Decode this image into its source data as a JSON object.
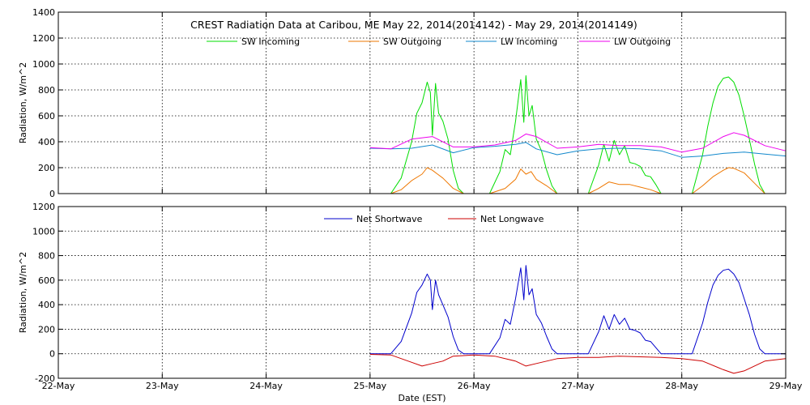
{
  "chart_data": [
    {
      "type": "line",
      "title": "CREST Radiation Data at Caribou, ME    May 22, 2014(2014142) - May 29, 2014(2014149)",
      "xlabel": "",
      "ylabel": "Radiation, W/m^2",
      "xlim": [
        0,
        7
      ],
      "ylim": [
        0,
        1400
      ],
      "yticks": [
        "0",
        "200",
        "400",
        "600",
        "800",
        "1000",
        "1200",
        "1400"
      ],
      "grid": true,
      "legend_position": "top",
      "x_tick_labels": [
        "22-May",
        "23-May",
        "24-May",
        "25-May",
        "26-May",
        "27-May",
        "28-May",
        "29-May"
      ],
      "series": [
        {
          "name": "SW Incoming",
          "color": "#00dd00",
          "x": [
            3.2,
            3.3,
            3.4,
            3.45,
            3.5,
            3.55,
            3.58,
            3.6,
            3.63,
            3.66,
            3.7,
            3.75,
            3.8,
            3.85,
            3.9,
            4.15,
            4.25,
            4.3,
            4.35,
            4.4,
            4.45,
            4.48,
            4.5,
            4.53,
            4.56,
            4.6,
            4.65,
            4.7,
            4.75,
            4.8,
            5.1,
            5.2,
            5.25,
            5.3,
            5.35,
            5.4,
            5.45,
            5.5,
            5.55,
            5.6,
            5.65,
            5.7,
            5.75,
            5.8,
            6.1,
            6.2,
            6.25,
            6.3,
            6.35,
            6.4,
            6.45,
            6.5,
            6.55,
            6.6,
            6.65,
            6.7,
            6.75,
            6.8
          ],
          "y": [
            0,
            120,
            400,
            620,
            700,
            860,
            780,
            450,
            850,
            620,
            560,
            420,
            180,
            40,
            0,
            0,
            170,
            340,
            300,
            560,
            880,
            550,
            910,
            600,
            680,
            420,
            330,
            180,
            60,
            0,
            0,
            220,
            380,
            250,
            410,
            300,
            370,
            240,
            230,
            210,
            140,
            130,
            70,
            0,
            0,
            300,
            520,
            700,
            830,
            890,
            900,
            860,
            760,
            600,
            420,
            230,
            70,
            0
          ]
        },
        {
          "name": "SW Outgoing",
          "color": "#ee7700",
          "x": [
            3.2,
            3.3,
            3.4,
            3.5,
            3.55,
            3.6,
            3.65,
            3.7,
            3.8,
            3.9,
            4.15,
            4.3,
            4.4,
            4.45,
            4.5,
            4.55,
            4.6,
            4.7,
            4.8,
            5.1,
            5.2,
            5.3,
            5.4,
            5.5,
            5.6,
            5.7,
            5.8,
            6.1,
            6.2,
            6.3,
            6.4,
            6.45,
            6.5,
            6.6,
            6.7,
            6.8
          ],
          "y": [
            0,
            30,
            100,
            150,
            200,
            180,
            150,
            120,
            40,
            0,
            0,
            40,
            110,
            190,
            150,
            170,
            110,
            60,
            0,
            0,
            40,
            90,
            70,
            70,
            50,
            30,
            0,
            0,
            60,
            130,
            180,
            200,
            195,
            160,
            80,
            0
          ]
        },
        {
          "name": "LW Incoming",
          "color": "#1188cc",
          "x": [
            3.0,
            3.2,
            3.4,
            3.6,
            3.8,
            4.0,
            4.2,
            4.4,
            4.5,
            4.6,
            4.8,
            5.0,
            5.2,
            5.4,
            5.6,
            5.8,
            6.0,
            6.2,
            6.4,
            6.6,
            6.8,
            7.0
          ],
          "y": [
            350,
            345,
            350,
            375,
            315,
            355,
            365,
            380,
            395,
            345,
            300,
            330,
            345,
            350,
            345,
            330,
            280,
            290,
            310,
            320,
            305,
            290
          ]
        },
        {
          "name": "LW Outgoing",
          "color": "#ee00ee",
          "x": [
            3.0,
            3.2,
            3.4,
            3.6,
            3.8,
            4.0,
            4.2,
            4.4,
            4.5,
            4.6,
            4.8,
            5.0,
            5.2,
            5.4,
            5.6,
            5.8,
            6.0,
            6.2,
            6.4,
            6.5,
            6.6,
            6.8,
            7.0
          ],
          "y": [
            355,
            345,
            420,
            440,
            360,
            360,
            375,
            410,
            460,
            440,
            350,
            360,
            380,
            370,
            370,
            360,
            320,
            350,
            440,
            470,
            450,
            370,
            330
          ]
        }
      ]
    },
    {
      "type": "line",
      "title": "",
      "xlabel": "Date (EST)",
      "ylabel": "Radiation, W/m^2",
      "xlim": [
        0,
        7
      ],
      "ylim": [
        -200,
        1200
      ],
      "yticks": [
        "-200",
        "0",
        "200",
        "400",
        "600",
        "800",
        "1000",
        "1200"
      ],
      "grid": true,
      "legend_position": "top",
      "x_tick_labels": [
        "22-May",
        "23-May",
        "24-May",
        "25-May",
        "26-May",
        "27-May",
        "28-May",
        "29-May"
      ],
      "series": [
        {
          "name": "Net Shortwave",
          "color": "#0000cc",
          "x": [
            3.0,
            3.2,
            3.3,
            3.4,
            3.45,
            3.5,
            3.55,
            3.58,
            3.6,
            3.63,
            3.66,
            3.7,
            3.75,
            3.8,
            3.85,
            3.9,
            4.15,
            4.25,
            4.3,
            4.35,
            4.4,
            4.45,
            4.48,
            4.5,
            4.53,
            4.56,
            4.6,
            4.65,
            4.7,
            4.75,
            4.8,
            5.1,
            5.2,
            5.25,
            5.3,
            5.35,
            5.4,
            5.45,
            5.5,
            5.55,
            5.6,
            5.65,
            5.7,
            5.75,
            5.8,
            6.1,
            6.2,
            6.25,
            6.3,
            6.35,
            6.4,
            6.45,
            6.5,
            6.55,
            6.6,
            6.65,
            6.7,
            6.75,
            6.8,
            7.0
          ],
          "y": [
            0,
            0,
            100,
            330,
            500,
            560,
            650,
            600,
            360,
            600,
            480,
            400,
            300,
            140,
            30,
            0,
            0,
            130,
            280,
            240,
            450,
            700,
            440,
            720,
            480,
            530,
            320,
            250,
            140,
            40,
            0,
            0,
            180,
            310,
            200,
            320,
            240,
            290,
            200,
            190,
            170,
            110,
            100,
            50,
            0,
            0,
            250,
            420,
            560,
            640,
            680,
            690,
            650,
            580,
            450,
            320,
            160,
            40,
            0,
            0
          ]
        },
        {
          "name": "Net Longwave",
          "color": "#cc0000",
          "x": [
            3.0,
            3.2,
            3.4,
            3.5,
            3.6,
            3.7,
            3.8,
            4.0,
            4.2,
            4.4,
            4.5,
            4.6,
            4.8,
            5.0,
            5.2,
            5.4,
            5.6,
            5.8,
            6.0,
            6.2,
            6.4,
            6.5,
            6.6,
            6.8,
            7.0
          ],
          "y": [
            -5,
            -10,
            -70,
            -100,
            -80,
            -60,
            -20,
            -10,
            -20,
            -60,
            -100,
            -80,
            -40,
            -30,
            -30,
            -20,
            -25,
            -30,
            -40,
            -60,
            -130,
            -160,
            -140,
            -60,
            -40
          ]
        }
      ]
    }
  ]
}
